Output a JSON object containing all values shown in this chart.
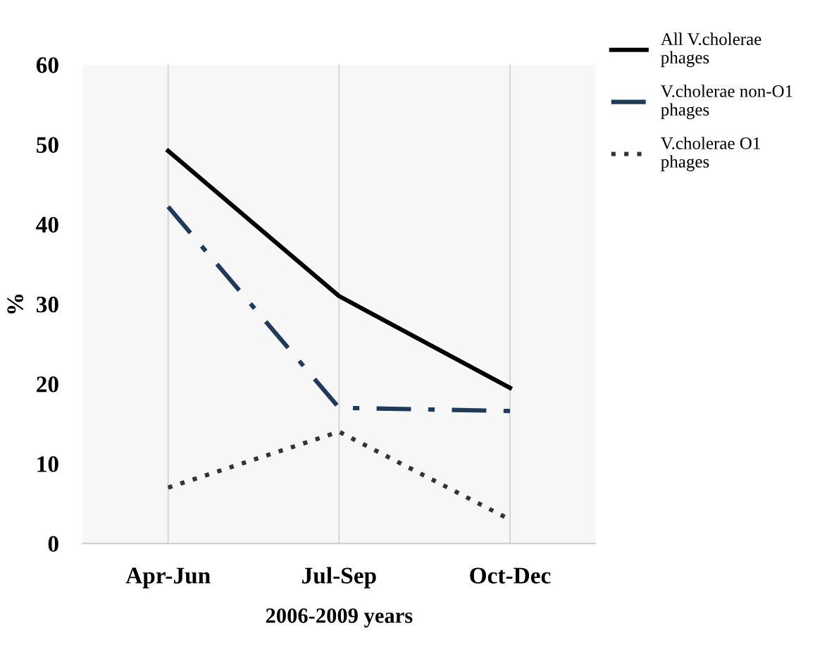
{
  "chart_data": {
    "type": "line",
    "xlabel": "2006-2009 years",
    "ylabel": "%",
    "categories": [
      "Apr-Jun",
      "Jul-Sep",
      "Oct-Dec"
    ],
    "series": [
      {
        "name": "All V.cholerae phages",
        "color": "#000000",
        "values": [
          49.2,
          31,
          19.5
        ],
        "line_style": "solid"
      },
      {
        "name": "V.cholerae non-O1 phages",
        "color": "#1f3a5a",
        "values": [
          42.2,
          17,
          16.6
        ],
        "line_style": "dashdot"
      },
      {
        "name": "V.cholerae O1 phages",
        "color": "#333333",
        "values": [
          7,
          14,
          3
        ],
        "line_style": "dotted"
      }
    ],
    "ylim": [
      0,
      60
    ],
    "yticks": [
      0,
      10,
      20,
      30,
      40,
      50,
      60
    ],
    "grid": "x",
    "legend": "top right",
    "marker": "none"
  }
}
